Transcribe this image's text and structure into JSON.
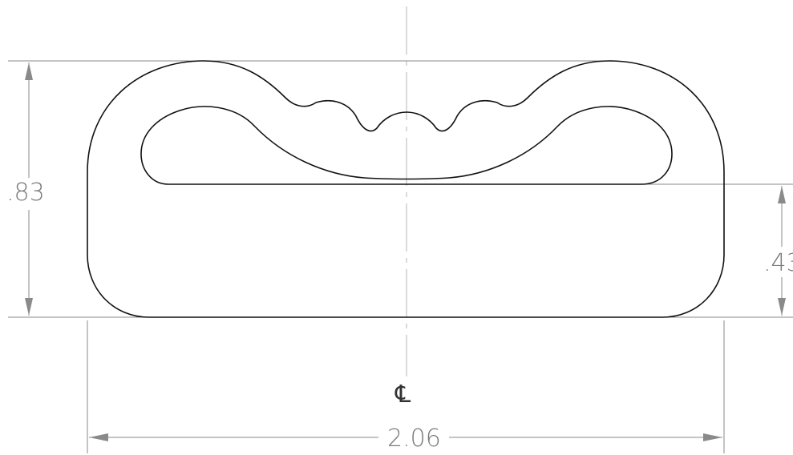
{
  "drawing": {
    "dimensions": {
      "overall_height": ".83",
      "lower_height": ".43",
      "overall_width": "2.06"
    },
    "centerline_symbol": "℄"
  },
  "colors": {
    "outline": "#111111",
    "dimension": "#8a8a8a",
    "centerline": "#b0b0b0"
  }
}
